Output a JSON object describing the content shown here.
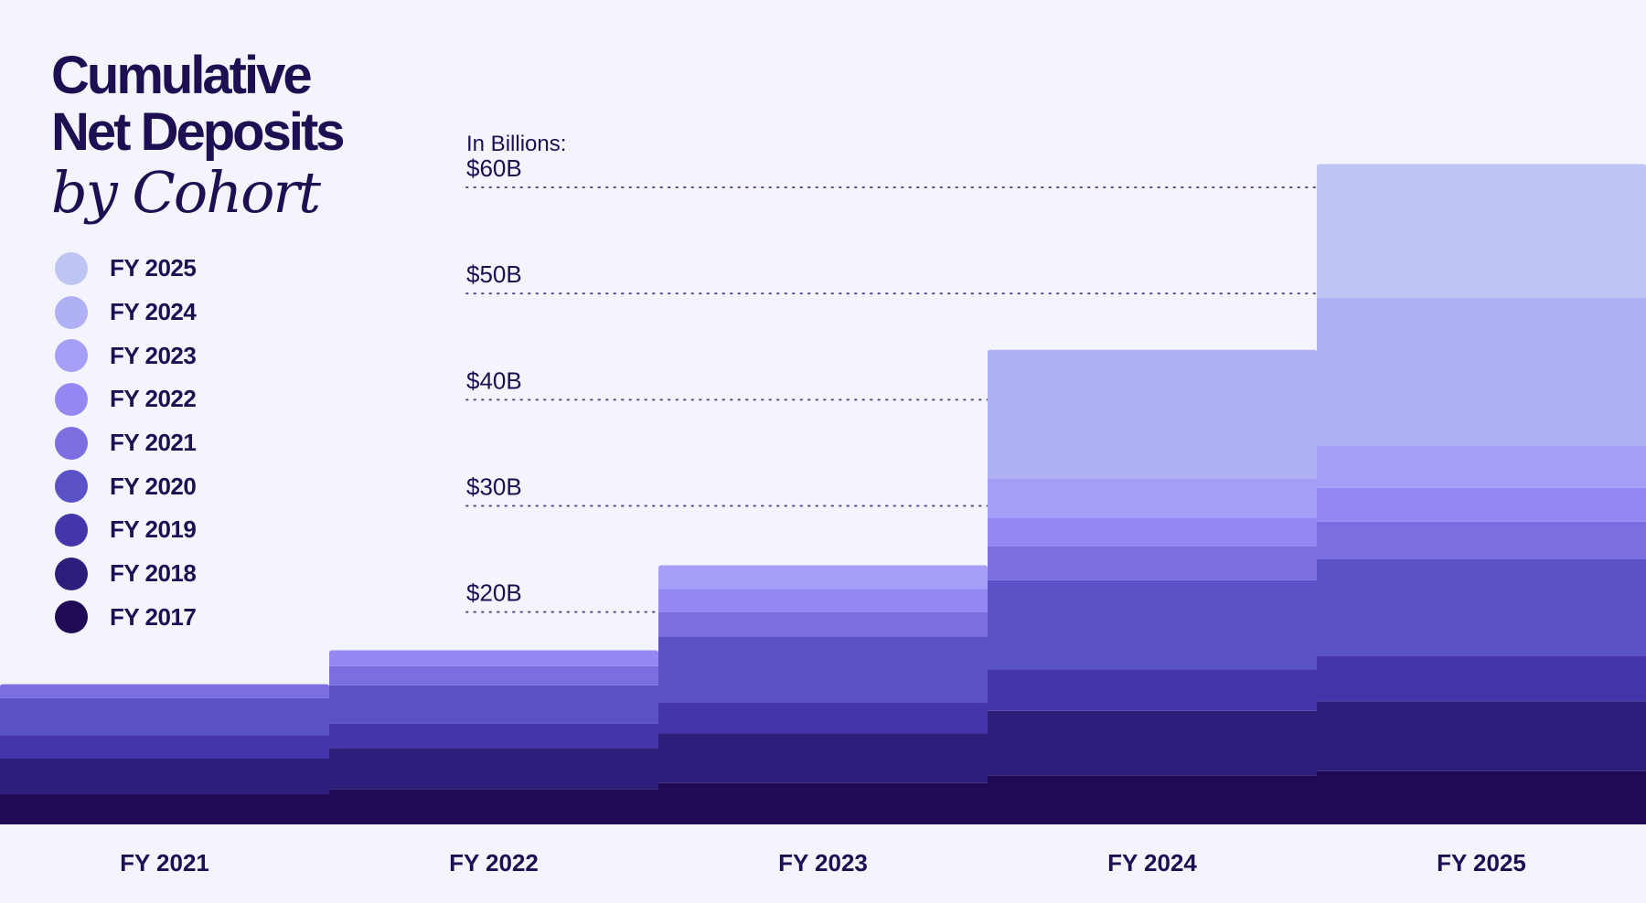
{
  "title": {
    "line1": "Cumulative",
    "line2": "Net Deposits",
    "line3": "by Cohort"
  },
  "chart_data": {
    "type": "bar",
    "stacked": true,
    "title": "Cumulative Net Deposits by Cohort",
    "ylabel": "In Billions:",
    "ylim": [
      0,
      62
    ],
    "yticks": [
      20,
      30,
      40,
      50,
      60
    ],
    "ytick_labels": [
      "$20B",
      "$30B",
      "$40B",
      "$50B",
      "$60B"
    ],
    "categories": [
      "FY 2021",
      "FY 2022",
      "FY 2023",
      "FY 2024",
      "FY 2025"
    ],
    "series": [
      {
        "name": "FY 2017",
        "color": "#200a55",
        "values": [
          2.8,
          3.3,
          3.9,
          4.6,
          5.0
        ]
      },
      {
        "name": "FY 2018",
        "color": "#2e1d7b",
        "values": [
          3.4,
          3.9,
          4.7,
          6.1,
          6.6
        ]
      },
      {
        "name": "FY 2019",
        "color": "#4436aa",
        "values": [
          2.2,
          2.3,
          2.9,
          3.9,
          4.3
        ]
      },
      {
        "name": "FY 2020",
        "color": "#5b52c8",
        "values": [
          3.5,
          3.6,
          6.2,
          8.4,
          9.1
        ]
      },
      {
        "name": "FY 2021",
        "color": "#7a6ee0",
        "values": [
          1.3,
          1.8,
          2.3,
          3.2,
          3.5
        ]
      },
      {
        "name": "FY 2022",
        "color": "#9489f3",
        "values": [
          0,
          1.5,
          2.2,
          2.7,
          3.2
        ]
      },
      {
        "name": "FY 2023",
        "color": "#a59ff8",
        "values": [
          0,
          0,
          2.2,
          3.7,
          4.0
        ]
      },
      {
        "name": "FY 2024",
        "color": "#b0b0f5",
        "values": [
          0,
          0,
          0,
          12.1,
          13.9
        ]
      },
      {
        "name": "FY 2025",
        "color": "#bec5f3",
        "values": [
          0,
          0,
          0,
          0,
          12.6
        ]
      }
    ]
  }
}
